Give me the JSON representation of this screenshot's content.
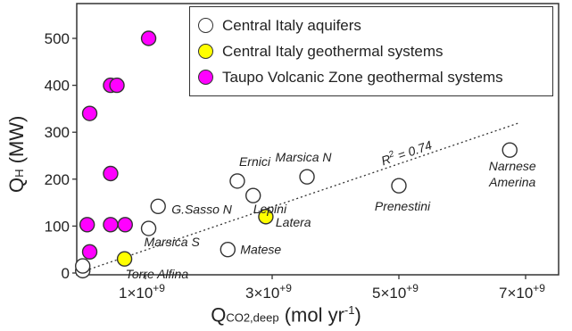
{
  "chart_data": {
    "type": "scatter",
    "xlabel_main": "Q",
    "xlabel_sub": "CO2,deep",
    "xlabel_unit": " (mol yr",
    "xlabel_unit_sup": "-1",
    "xlabel_end": ")",
    "ylabel_main": "Q",
    "ylabel_sub": "H",
    "ylabel_unit": " (MW)",
    "xlim": [
      0,
      7000000000
    ],
    "ylim": [
      0,
      560
    ],
    "xticks": [
      {
        "value": 1000000000,
        "label": "1×10+9"
      },
      {
        "value": 3000000000,
        "label": "3×10+9"
      },
      {
        "value": 5000000000,
        "label": "5×10+9"
      },
      {
        "value": 7000000000,
        "label": "7×10+9"
      }
    ],
    "yticks": [
      {
        "value": 0,
        "label": "0"
      },
      {
        "value": 100,
        "label": "100"
      },
      {
        "value": 200,
        "label": "200"
      },
      {
        "value": 300,
        "label": "300"
      },
      {
        "value": 400,
        "label": "400"
      },
      {
        "value": 500,
        "label": "500"
      }
    ],
    "legend_position": "top-right",
    "series": [
      {
        "name": "Central Italy aquifers",
        "color": "#ffffff",
        "points": [
          {
            "x": 10000000,
            "y": 5
          },
          {
            "x": 10000000,
            "y": 15
          },
          {
            "x": 2300000000,
            "y": 50,
            "label": "Matese"
          },
          {
            "x": 1050000000,
            "y": 95,
            "label": "Marsica S"
          },
          {
            "x": 1200000000,
            "y": 142,
            "label": "G.Sasso N"
          },
          {
            "x": 2450000000,
            "y": 196,
            "label": "Ernici"
          },
          {
            "x": 2700000000,
            "y": 165,
            "label": "Lepini"
          },
          {
            "x": 3550000000,
            "y": 205,
            "label": "Marsica N"
          },
          {
            "x": 5000000000,
            "y": 186,
            "label": "Prenestini"
          },
          {
            "x": 6750000000,
            "y": 262,
            "label": "Narnese\nAmerina"
          }
        ]
      },
      {
        "name": "Central Italy geothermal systems",
        "color": "#ffff00",
        "points": [
          {
            "x": 670000000,
            "y": 30,
            "label": "Torre Alfina"
          },
          {
            "x": 2900000000,
            "y": 120,
            "label": "Latera"
          }
        ]
      },
      {
        "name": "Taupo Volcanic Zone geothermal systems",
        "color": "#ff00ff",
        "points": [
          {
            "x": 1050000000,
            "y": 500
          },
          {
            "x": 450000000,
            "y": 400
          },
          {
            "x": 550000000,
            "y": 400
          },
          {
            "x": 120000000,
            "y": 340
          },
          {
            "x": 450000000,
            "y": 212
          },
          {
            "x": 80000000,
            "y": 103
          },
          {
            "x": 450000000,
            "y": 103
          },
          {
            "x": 680000000,
            "y": 103
          },
          {
            "x": 120000000,
            "y": 45
          }
        ]
      }
    ],
    "trendline": {
      "style": "dotted",
      "from": {
        "x": 50000000,
        "y": 5
      },
      "to": {
        "x": 6900000000,
        "y": 320
      },
      "label": "R2 = 0.74",
      "label_main": "R",
      "label_sup": "2",
      "label_rest": " = 0.74"
    }
  }
}
